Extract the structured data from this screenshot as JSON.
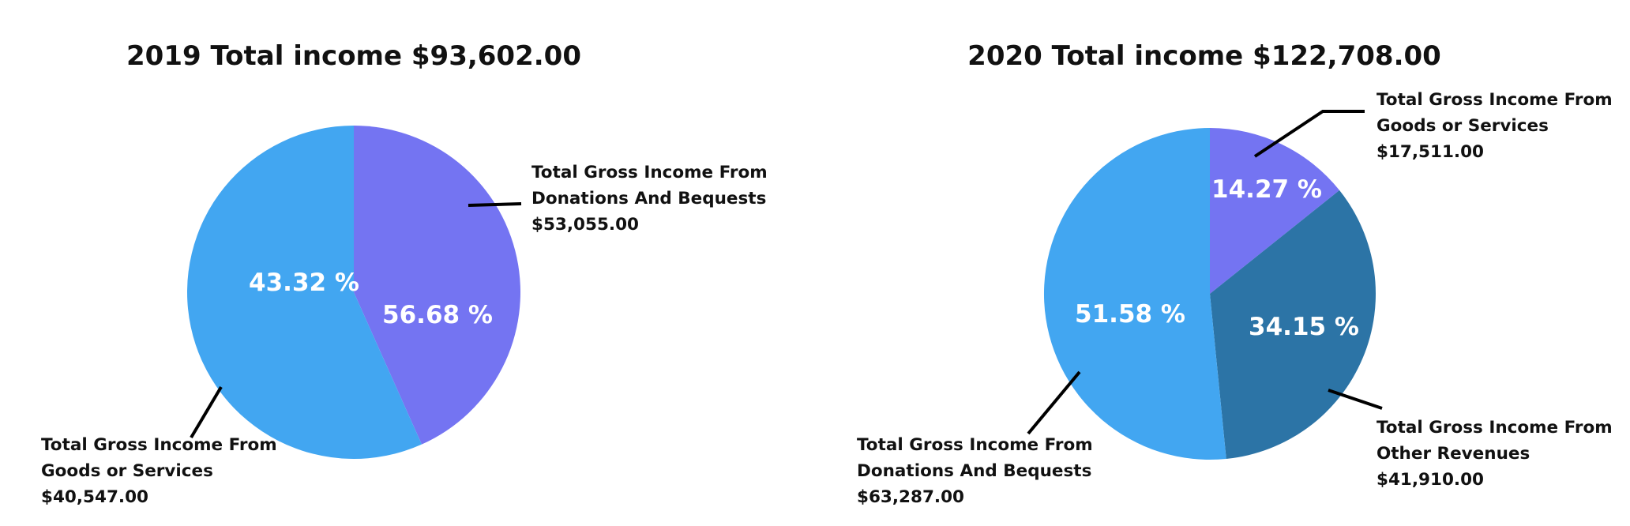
{
  "chart_data": [
    {
      "type": "pie",
      "title": "2019 Total income $93,602.00",
      "slices": [
        {
          "label_lines": [
            "Total Gross Income From",
            "Goods or Services",
            "$40,547.00"
          ],
          "value": 40547.0,
          "percent_label": "43.32 %",
          "color": "#7474f2"
        },
        {
          "label_lines": [
            "Total Gross Income From",
            "Donations And Bequests",
            "$53,055.00"
          ],
          "value": 53055.0,
          "percent_label": "56.68 %",
          "color": "#42a6f1"
        }
      ]
    },
    {
      "type": "pie",
      "title": "2020 Total income $122,708.00",
      "slices": [
        {
          "label_lines": [
            "Total Gross Income From",
            "Goods or Services",
            "$17,511.00"
          ],
          "value": 17511.0,
          "percent_label": "14.27 %",
          "color": "#7474f2"
        },
        {
          "label_lines": [
            "Total Gross Income From",
            "Other Revenues",
            "$41,910.00"
          ],
          "value": 41910.0,
          "percent_label": "34.15 %",
          "color": "#2c74a6"
        },
        {
          "label_lines": [
            "Total Gross Income From",
            "Donations And Bequests",
            "$63,287.00"
          ],
          "value": 63287.0,
          "percent_label": "51.58 %",
          "color": "#42a6f1"
        }
      ]
    }
  ]
}
